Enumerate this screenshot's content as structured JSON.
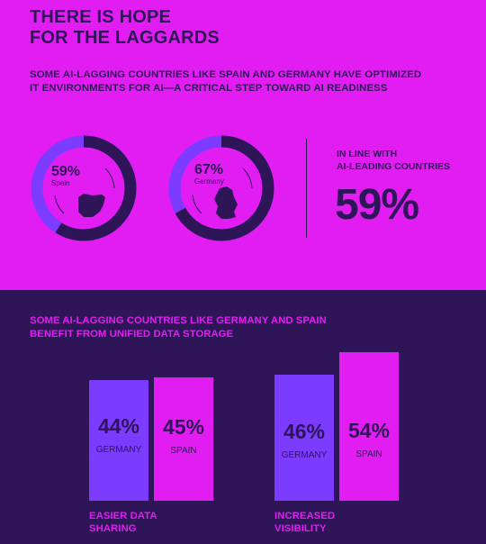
{
  "colors": {
    "magenta": "#e21df2",
    "dark": "#2e1558",
    "violet": "#7b3cff"
  },
  "header": {
    "title_lines": [
      "THERE IS HOPE",
      "FOR THE LAGGARDS"
    ],
    "subtitle_lines": [
      "SOME AI-LAGGING COUNTRIES LIKE SPAIN AND GERMANY HAVE OPTIMIZED",
      "IT ENVIRONMENTS FOR AI—A CRITICAL STEP TOWARD AI READINESS"
    ]
  },
  "inline": {
    "label_lines": [
      "IN LINE WITH",
      "AI-LEADING COUNTRIES"
    ],
    "value": "59%"
  },
  "section2": {
    "title_lines": [
      "SOME AI-LAGGING COUNTRIES LIKE GERMANY AND SPAIN",
      "BENEFIT FROM UNIFIED DATA STORAGE"
    ]
  },
  "chart_data": [
    {
      "type": "pie",
      "series": [
        {
          "name": "Spain",
          "pct_label": "59%",
          "value": 59
        },
        {
          "name": "Germany",
          "pct_label": "67%",
          "value": 67
        }
      ]
    },
    {
      "type": "bar",
      "categories": [
        "EASIER DATA SHARING",
        "INCREASED VISIBILITY"
      ],
      "category_lines": [
        [
          "EASIER DATA",
          "SHARING"
        ],
        [
          "INCREASED",
          "VISIBILITY"
        ]
      ],
      "series": [
        {
          "name": "GERMANY",
          "values": [
            44,
            46
          ],
          "labels": [
            "44%",
            "46%"
          ]
        },
        {
          "name": "SPAIN",
          "values": [
            45,
            54
          ],
          "labels": [
            "45%",
            "54%"
          ]
        }
      ]
    }
  ]
}
